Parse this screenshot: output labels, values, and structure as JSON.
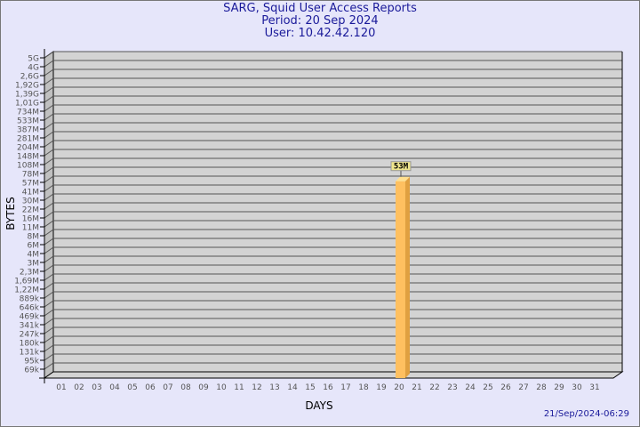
{
  "header": {
    "title": "SARG, Squid User Access Reports",
    "period": "Period: 20 Sep 2024",
    "user": "User: 10.42.42.120"
  },
  "footer": {
    "timestamp": "21/Sep/2024-06:29"
  },
  "colors": {
    "background": "#e6e6fa",
    "plot": "#d3d3d3",
    "bar": "#ffc060",
    "title": "#1a1a9a",
    "label_box": "#f0e68c"
  },
  "chart_data": {
    "type": "bar",
    "xlabel": "DAYS",
    "ylabel": "BYTES",
    "yscale": "log",
    "grid": true,
    "y_ticks": [
      "5G",
      "4G",
      "2,6G",
      "1,92G",
      "1,39G",
      "1,01G",
      "734M",
      "533M",
      "387M",
      "281M",
      "204M",
      "148M",
      "108M",
      "78M",
      "57M",
      "41M",
      "30M",
      "22M",
      "16M",
      "11M",
      "8M",
      "6M",
      "4M",
      "3M",
      "2,3M",
      "1,69M",
      "1,22M",
      "889k",
      "646k",
      "469k",
      "341k",
      "247k",
      "180k",
      "131k",
      "95k",
      "69k"
    ],
    "categories": [
      "01",
      "02",
      "03",
      "04",
      "05",
      "06",
      "07",
      "08",
      "09",
      "10",
      "11",
      "12",
      "13",
      "14",
      "15",
      "16",
      "17",
      "18",
      "19",
      "20",
      "21",
      "22",
      "23",
      "24",
      "25",
      "26",
      "27",
      "28",
      "29",
      "30",
      "31"
    ],
    "values": [
      0,
      0,
      0,
      0,
      0,
      0,
      0,
      0,
      0,
      0,
      0,
      0,
      0,
      0,
      0,
      0,
      0,
      0,
      0,
      53000000,
      0,
      0,
      0,
      0,
      0,
      0,
      0,
      0,
      0,
      0,
      0
    ],
    "data_labels": [
      {
        "category": "20",
        "label": "53M"
      }
    ]
  }
}
